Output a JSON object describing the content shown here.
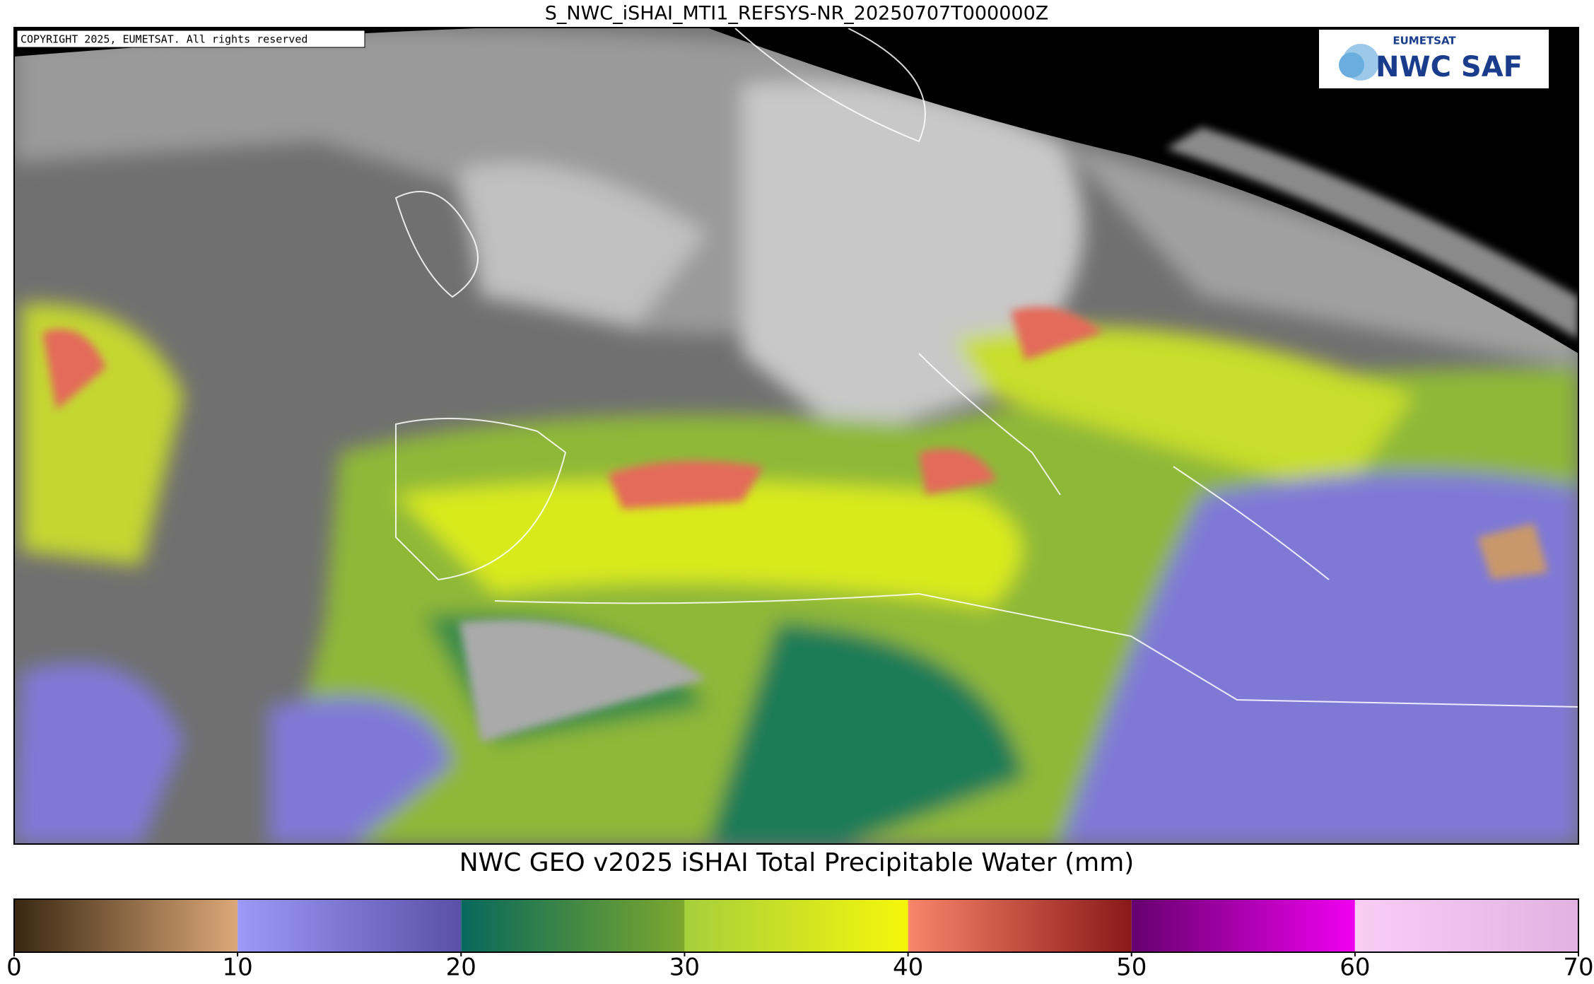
{
  "header": {
    "title": "S_NWC_iSHAI_MTI1_REFSYS-NR_20250707T000000Z"
  },
  "copyright": "COPYRIGHT 2025, EUMETSAT. All rights reserved",
  "logo": {
    "top": "EUMETSAT",
    "main": "NWC SAF"
  },
  "colorbar": {
    "label": "NWC GEO v2025 iSHAI Total Precipitable Water (mm)",
    "lim": [
      0,
      70
    ],
    "ticks": [
      0,
      10,
      20,
      30,
      40,
      50,
      60,
      70
    ],
    "segments": [
      {
        "from": 0,
        "to": 10,
        "colors": [
          "#3a2812",
          "#dca878"
        ]
      },
      {
        "from": 10,
        "to": 20,
        "colors": [
          "#9c9af6",
          "#5a50a8"
        ]
      },
      {
        "from": 20,
        "to": 30,
        "colors": [
          "#07685c",
          "#7ca82e"
        ]
      },
      {
        "from": 30,
        "to": 40,
        "colors": [
          "#a6cf3c",
          "#f6f60a"
        ]
      },
      {
        "from": 40,
        "to": 50,
        "colors": [
          "#f8866a",
          "#8a1818"
        ]
      },
      {
        "from": 50,
        "to": 60,
        "colors": [
          "#66006e",
          "#f000f0"
        ]
      },
      {
        "from": 60,
        "to": 70,
        "colors": [
          "#f8cdf4",
          "#e2b2e2"
        ]
      }
    ]
  }
}
